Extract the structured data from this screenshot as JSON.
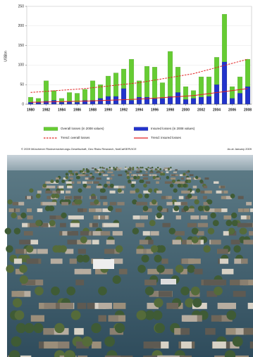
{
  "chart_data": {
    "type": "bar",
    "y_label": "US$bn",
    "x": [
      1980,
      1981,
      1982,
      1983,
      1984,
      1985,
      1986,
      1987,
      1988,
      1989,
      1990,
      1991,
      1992,
      1993,
      1994,
      1995,
      1996,
      1997,
      1998,
      1999,
      2000,
      2001,
      2002,
      2003,
      2004,
      2005,
      2006,
      2007,
      2008
    ],
    "xlim": [
      1979.5,
      2008.5
    ],
    "xticks": [
      1980,
      1982,
      1984,
      1986,
      1988,
      1990,
      1992,
      1994,
      1996,
      1998,
      2000,
      2002,
      2004,
      2006,
      2008
    ],
    "ylim": [
      0,
      250
    ],
    "yticks": [
      0,
      50,
      100,
      150,
      200,
      250
    ],
    "grid": true,
    "series": [
      {
        "name": "Overall losses (in 2008 values)",
        "color": "#66cc33",
        "values": [
          18,
          15,
          60,
          35,
          15,
          30,
          28,
          38,
          60,
          50,
          72,
          80,
          90,
          115,
          60,
          97,
          95,
          55,
          135,
          95,
          45,
          35,
          70,
          70,
          120,
          230,
          45,
          70,
          115
        ]
      },
      {
        "name": "Insured losses (in 2008 values)",
        "color": "#2233cc",
        "values": [
          5,
          5,
          8,
          10,
          5,
          7,
          5,
          10,
          10,
          15,
          20,
          20,
          40,
          10,
          18,
          18,
          14,
          15,
          20,
          30,
          12,
          15,
          18,
          20,
          50,
          108,
          15,
          28,
          45
        ]
      },
      {
        "name": "Trend: overall losses",
        "type": "line",
        "dashed": true,
        "color": "#e02020",
        "x": [
          1980,
          1987,
          1994,
          2001,
          2008
        ],
        "values": [
          30,
          40,
          55,
          78,
          115
        ]
      },
      {
        "name": "Trend: insured losses",
        "type": "line",
        "dashed": false,
        "color": "#e02020",
        "x": [
          1980,
          1987,
          1994,
          2001,
          2008
        ],
        "values": [
          5,
          8,
          13,
          22,
          40
        ]
      }
    ],
    "source": "© 2009 Münchener Rückversicherungs-Gesellschaft, Geo Risks Research, NatCatSERVICE",
    "note": "As at January 2009"
  }
}
